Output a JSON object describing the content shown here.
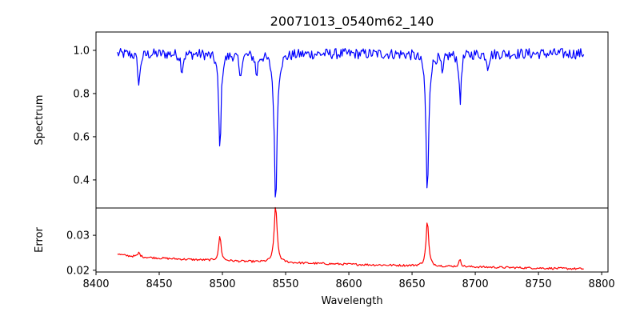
{
  "chart_data": [
    {
      "type": "line",
      "title": "20071013_0540m62_140",
      "xlabel": "",
      "ylabel": "Spectrum",
      "xlim": [
        8400,
        8805
      ],
      "ylim": [
        0.27,
        1.085
      ],
      "xticks": [
        8400,
        8450,
        8500,
        8550,
        8600,
        8650,
        8700,
        8750,
        8800
      ],
      "yticks": [
        0.4,
        0.6,
        0.8,
        1.0
      ],
      "ytick_labels": [
        "0.4",
        "0.6",
        "0.8",
        "1.0"
      ],
      "show_xtick_labels": false,
      "grid": false,
      "series": [
        {
          "color": "#0000ff",
          "x_range": [
            8417,
            8786
          ],
          "continuum": 0.985,
          "noise_amplitude": 0.025,
          "absorption_lines": [
            {
              "center": 8498.0,
              "depth": 0.45,
              "width": 1.1
            },
            {
              "center": 8542.1,
              "depth": 0.69,
              "width": 1.3
            },
            {
              "center": 8662.1,
              "depth": 0.67,
              "width": 1.2
            },
            {
              "center": 8434.0,
              "depth": 0.15,
              "width": 1.0
            },
            {
              "center": 8468.0,
              "depth": 0.08,
              "width": 1.0
            },
            {
              "center": 8514.0,
              "depth": 0.12,
              "width": 1.0
            },
            {
              "center": 8527.0,
              "depth": 0.1,
              "width": 1.0
            },
            {
              "center": 8674.0,
              "depth": 0.1,
              "width": 1.0
            },
            {
              "center": 8688.0,
              "depth": 0.24,
              "width": 0.9
            },
            {
              "center": 8710.0,
              "depth": 0.06,
              "width": 1.0
            }
          ]
        }
      ]
    },
    {
      "type": "line",
      "title": "",
      "xlabel": "Wavelength",
      "ylabel": "Error",
      "xlim": [
        8400,
        8805
      ],
      "ylim": [
        0.0195,
        0.0378
      ],
      "xticks": [
        8400,
        8450,
        8500,
        8550,
        8600,
        8650,
        8700,
        8750,
        8800
      ],
      "xtick_labels": [
        "8400",
        "8450",
        "8500",
        "8550",
        "8600",
        "8650",
        "8700",
        "8750",
        "8800"
      ],
      "yticks": [
        0.02,
        0.03
      ],
      "ytick_labels": [
        "0.02",
        "0.03"
      ],
      "grid": false,
      "series": [
        {
          "color": "#ff0000",
          "x_range": [
            8417,
            8786
          ],
          "baseline_start": 0.0248,
          "baseline_end": 0.0204,
          "noise_amplitude": 0.0003,
          "emission_peaks": [
            {
              "center": 8498.0,
              "height": 0.0072,
              "width": 1.1
            },
            {
              "center": 8542.1,
              "height": 0.0165,
              "width": 1.3
            },
            {
              "center": 8662.1,
              "height": 0.013,
              "width": 1.2
            },
            {
              "center": 8434.0,
              "height": 0.0012,
              "width": 1.0
            },
            {
              "center": 8688.0,
              "height": 0.0022,
              "width": 0.9
            }
          ]
        }
      ]
    }
  ]
}
